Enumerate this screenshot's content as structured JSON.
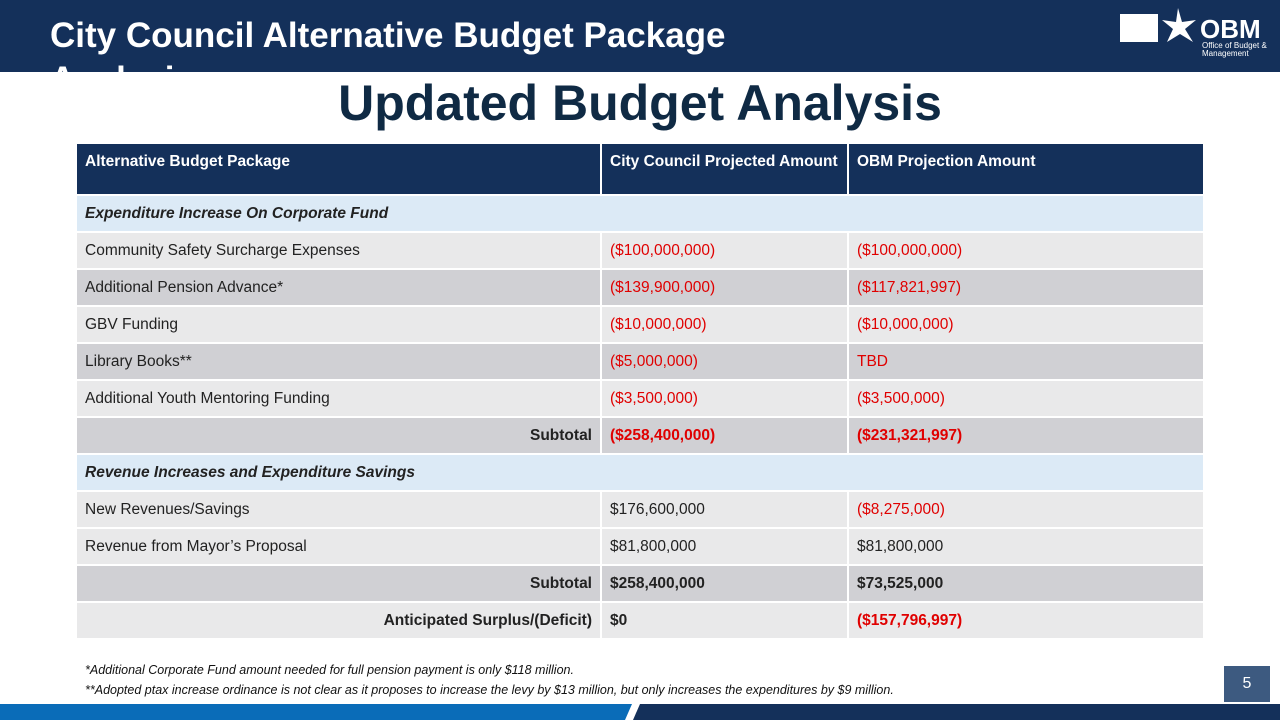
{
  "header": {
    "title": "City Council Alternative Budget Package Analysis",
    "logo": {
      "name": "OBM",
      "subtitle": "Office of Budget & Management"
    }
  },
  "slide_title": "Updated Budget Analysis",
  "table": {
    "header": [
      "Alternative Budget Package",
      "City Council Projected Amount",
      "OBM Projection Amount"
    ],
    "sections": [
      {
        "title": "Expenditure Increase On Corporate Fund",
        "rows": [
          [
            "Community Safety Surcharge Expenses",
            "($100,000,000)",
            "($100,000,000)"
          ],
          [
            "Additional Pension Advance*",
            "($139,900,000)",
            "($117,821,997)"
          ],
          [
            "GBV Funding",
            "($10,000,000)",
            "($10,000,000)"
          ],
          [
            "Library Books**",
            "($5,000,000)",
            "TBD"
          ],
          [
            "Additional Youth Mentoring Funding",
            "($3,500,000)",
            "($3,500,000)"
          ]
        ],
        "subtotal": [
          "Subtotal",
          "($258,400,000)",
          "($231,321,997)"
        ]
      },
      {
        "title": "Revenue Increases and Expenditure Savings",
        "rows": [
          [
            "New Revenues/Savings",
            "$176,600,000",
            "($8,275,000)"
          ],
          [
            "Revenue from Mayor’s Proposal",
            "$81,800,000",
            "$81,800,000"
          ]
        ],
        "subtotal": [
          "Subtotal",
          "$258,400,000",
          "$73,525,000"
        ]
      }
    ],
    "total": [
      "Anticipated Surplus/(Deficit)",
      "$0",
      "($157,796,997)"
    ]
  },
  "footnotes": [
    "*Additional Corporate Fund amount needed for full pension payment is only $118 million.",
    "**Adopted ptax increase ordinance is not clear as it proposes to increase the levy by $13 million, but only increases the expenditures by $9 million."
  ],
  "page_number": "5"
}
